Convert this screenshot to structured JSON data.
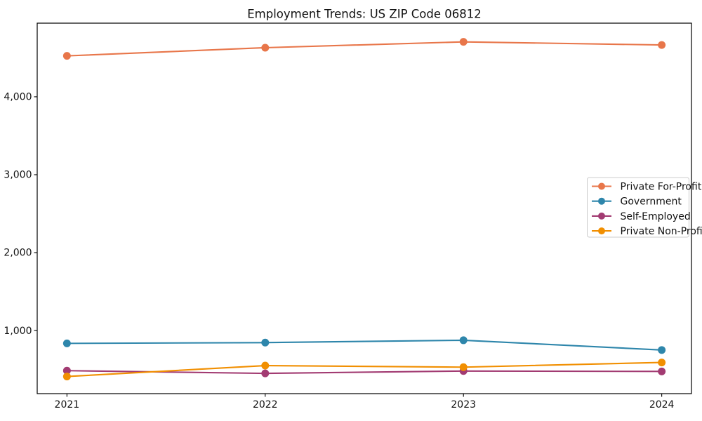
{
  "chart_data": {
    "type": "line",
    "title": "Employment Trends: US ZIP Code 06812",
    "xlabel": "",
    "ylabel": "",
    "x": [
      2021,
      2022,
      2023,
      2024
    ],
    "x_tick_labels": [
      "2021",
      "2022",
      "2023",
      "2024"
    ],
    "y_ticks": [
      1000,
      2000,
      3000,
      4000
    ],
    "y_tick_labels": [
      "1,000",
      "2,000",
      "3,000",
      "4,000"
    ],
    "xlim": [
      2020.85,
      2024.15
    ],
    "ylim": [
      190,
      4945
    ],
    "grid": false,
    "legend_position": "center right",
    "series": [
      {
        "name": "Private For-Profit",
        "color": "#E8764A",
        "values": [
          4525,
          4630,
          4705,
          4665
        ]
      },
      {
        "name": "Government",
        "color": "#2E86AB",
        "values": [
          835,
          845,
          875,
          750
        ]
      },
      {
        "name": "Self-Employed",
        "color": "#A23B72",
        "values": [
          485,
          450,
          480,
          475
        ]
      },
      {
        "name": "Private Non-Profit",
        "color": "#F18F01",
        "values": [
          410,
          550,
          530,
          590
        ]
      }
    ],
    "style": {
      "background": "#ffffff",
      "axis_color": "#000000",
      "text_color": "#111111",
      "legend_border_color": "#cccccc",
      "legend_fill": "#ffffff",
      "line_width": 2.1,
      "marker_radius": 5.5
    }
  }
}
